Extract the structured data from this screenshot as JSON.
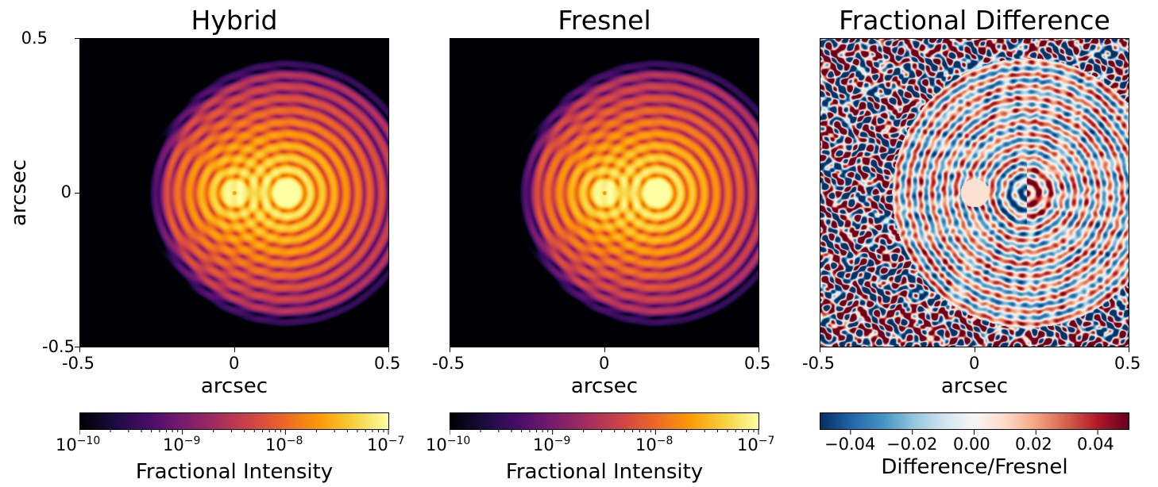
{
  "chart_data": [
    {
      "type": "heatmap",
      "title": "Hybrid",
      "xlabel": "arcsec",
      "ylabel": "arcsec",
      "xlim": [
        -0.5,
        0.5
      ],
      "ylim": [
        -0.5,
        0.5
      ],
      "x_ticks": [
        "-0.5",
        "0",
        "0.5"
      ],
      "y_ticks": [
        "0.5",
        "0",
        "-0.5"
      ],
      "colormap": "inferno",
      "scale": "log",
      "sources": [
        {
          "x": 0.0,
          "y": 0.0,
          "relative_peak": "~3e-8",
          "note": "dimmer companion with central dark dot"
        },
        {
          "x": 0.17,
          "y": 0.0,
          "relative_peak": "~1e-7"
        }
      ],
      "colorbar": {
        "label": "Fractional Intensity",
        "range": [
          1e-10,
          1e-07
        ],
        "ticks": [
          {
            "base": "10",
            "exp": "−10"
          },
          {
            "base": "10",
            "exp": "−9"
          },
          {
            "base": "10",
            "exp": "−8"
          },
          {
            "base": "10",
            "exp": "−7"
          }
        ]
      }
    },
    {
      "type": "heatmap",
      "title": "Fresnel",
      "xlabel": "arcsec",
      "xlim": [
        -0.5,
        0.5
      ],
      "ylim": [
        -0.5,
        0.5
      ],
      "x_ticks": [
        "-0.5",
        "0",
        "0.5"
      ],
      "colormap": "inferno",
      "scale": "log",
      "sources": [
        {
          "x": 0.0,
          "y": 0.0,
          "relative_peak": "~3e-8"
        },
        {
          "x": 0.17,
          "y": 0.0,
          "relative_peak": "~1e-7"
        }
      ],
      "colorbar": {
        "label": "Fractional Intensity",
        "range": [
          1e-10,
          1e-07
        ],
        "ticks": [
          {
            "base": "10",
            "exp": "−10"
          },
          {
            "base": "10",
            "exp": "−9"
          },
          {
            "base": "10",
            "exp": "−8"
          },
          {
            "base": "10",
            "exp": "−7"
          }
        ]
      }
    },
    {
      "type": "heatmap",
      "title": "Fractional Difference",
      "xlabel": "arcsec",
      "xlim": [
        -0.5,
        0.5
      ],
      "ylim": [
        -0.5,
        0.5
      ],
      "x_ticks": [
        "-0.5",
        "0",
        "0.5"
      ],
      "colormap": "RdBu_r",
      "colorbar": {
        "label": "Difference/Fresnel",
        "range": [
          -0.05,
          0.05
        ],
        "ticks": [
          "−0.04",
          "−0.02",
          "0.00",
          "0.02",
          "0.04"
        ]
      }
    }
  ],
  "colors": {
    "inferno": [
      "#000004",
      "#1b0c41",
      "#4a0c6b",
      "#781c6d",
      "#a52c60",
      "#cf4446",
      "#ed6925",
      "#fb9b06",
      "#f7d13d",
      "#fcffa4"
    ],
    "rdbu": [
      "#053061",
      "#2166ac",
      "#4393c3",
      "#92c5de",
      "#d1e5f0",
      "#f7f7f7",
      "#fddbc7",
      "#f4a582",
      "#d6604d",
      "#b2182b",
      "#67001f"
    ]
  }
}
